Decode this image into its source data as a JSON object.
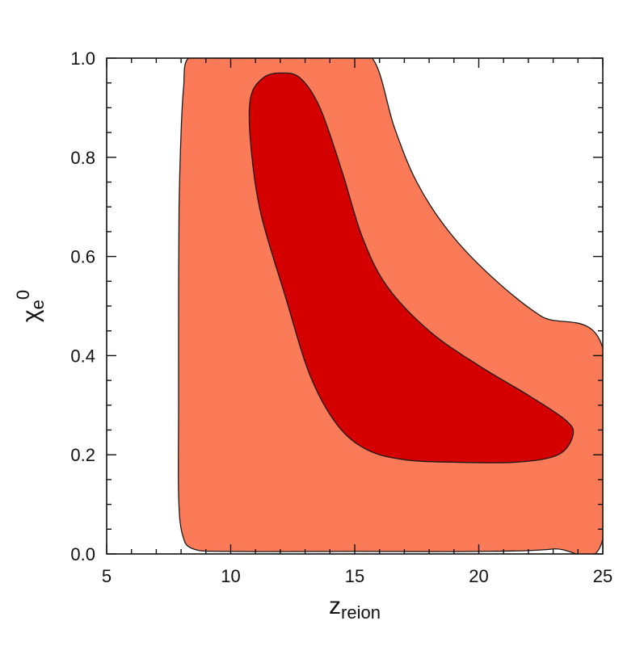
{
  "chart_data": {
    "type": "contour",
    "title": "",
    "xlabel": "z",
    "xlabel_sub": "reion",
    "ylabel": "χ",
    "ylabel_sub": "e",
    "ylabel_sup": "0",
    "xlim": [
      5,
      25
    ],
    "ylim": [
      0.0,
      1.0
    ],
    "xticks": [
      5,
      10,
      15,
      20,
      25
    ],
    "xtick_labels": [
      "5",
      "10",
      "15",
      "20",
      "25"
    ],
    "yticks": [
      0.0,
      0.2,
      0.4,
      0.6,
      0.8,
      1.0
    ],
    "ytick_labels": [
      "0.0",
      "0.2",
      "0.4",
      "0.6",
      "0.8",
      "1.0"
    ],
    "grid": false,
    "regions": [
      {
        "level": "outer",
        "color": "#fb7a58",
        "points": [
          [
            8.3,
            1.0
          ],
          [
            9.5,
            1.0
          ],
          [
            12.2,
            1.0
          ],
          [
            14.2,
            1.0
          ],
          [
            15.7,
            1.0
          ],
          [
            16.6,
            0.86
          ],
          [
            17.5,
            0.75
          ],
          [
            18.8,
            0.65
          ],
          [
            20.5,
            0.56
          ],
          [
            22.5,
            0.48
          ],
          [
            25.0,
            0.415
          ],
          [
            25.0,
            0.03
          ],
          [
            23.0,
            0.01
          ],
          [
            20.0,
            0.005
          ],
          [
            15.0,
            0.005
          ],
          [
            10.0,
            0.005
          ],
          [
            8.5,
            0.01
          ],
          [
            8.05,
            0.04
          ],
          [
            7.9,
            0.12
          ],
          [
            7.9,
            0.3
          ],
          [
            7.9,
            0.5
          ],
          [
            7.92,
            0.7
          ],
          [
            8.0,
            0.85
          ],
          [
            8.1,
            0.94
          ]
        ]
      },
      {
        "level": "inner",
        "color": "#d40000",
        "points": [
          [
            12.0,
            0.97
          ],
          [
            12.8,
            0.96
          ],
          [
            13.6,
            0.9
          ],
          [
            14.5,
            0.77
          ],
          [
            15.3,
            0.64
          ],
          [
            16.3,
            0.54
          ],
          [
            18.0,
            0.45
          ],
          [
            20.0,
            0.38
          ],
          [
            22.0,
            0.32
          ],
          [
            23.5,
            0.27
          ],
          [
            23.8,
            0.24
          ],
          [
            23.2,
            0.2
          ],
          [
            21.5,
            0.185
          ],
          [
            19.0,
            0.185
          ],
          [
            17.0,
            0.19
          ],
          [
            15.5,
            0.21
          ],
          [
            14.3,
            0.26
          ],
          [
            13.2,
            0.36
          ],
          [
            12.2,
            0.52
          ],
          [
            11.2,
            0.69
          ],
          [
            10.8,
            0.83
          ],
          [
            10.8,
            0.92
          ],
          [
            11.3,
            0.96
          ]
        ]
      }
    ]
  }
}
